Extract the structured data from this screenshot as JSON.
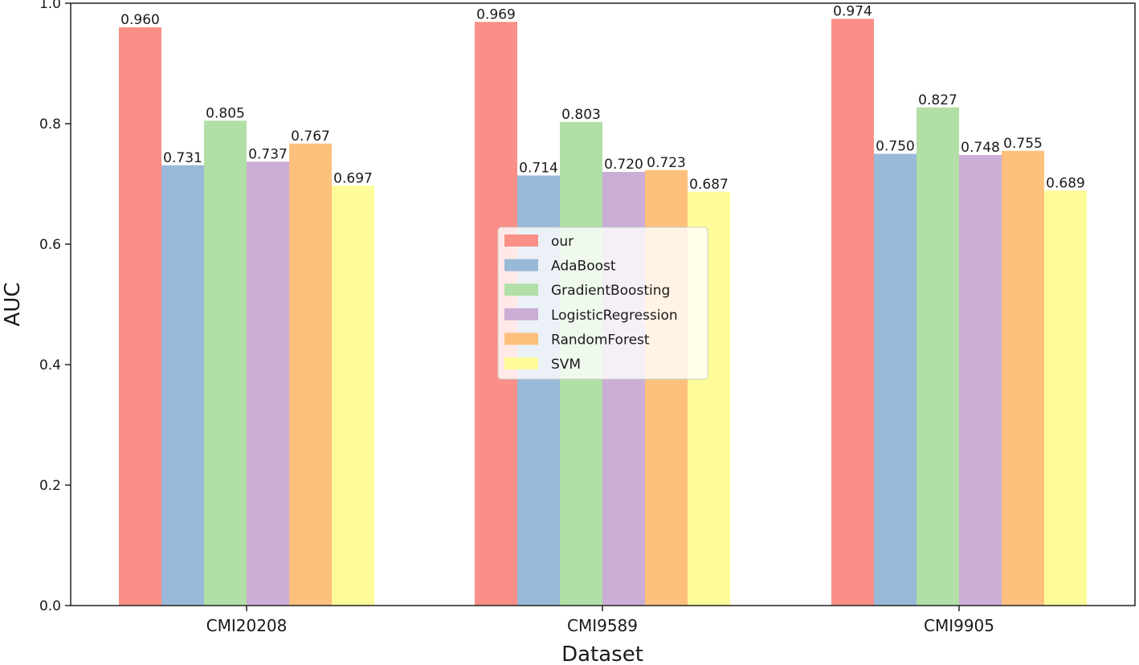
{
  "chart_data": {
    "type": "bar",
    "xlabel": "Dataset",
    "ylabel": "AUC",
    "ylim": [
      0,
      1.0
    ],
    "yticks": [
      "0.0",
      "0.2",
      "0.4",
      "0.6",
      "0.8",
      "1.0"
    ],
    "grid": false,
    "legend_position": "center",
    "categories": [
      "CMI20208",
      "CMI9589",
      "CMI9905"
    ],
    "series": [
      {
        "name": "our",
        "color": "#f98f86",
        "values": [
          0.96,
          0.969,
          0.974
        ],
        "labels": [
          "0.960",
          "0.969",
          "0.974"
        ]
      },
      {
        "name": "AdaBoost",
        "color": "#99b9d8",
        "values": [
          0.731,
          0.714,
          0.75
        ],
        "labels": [
          "0.731",
          "0.714",
          "0.750"
        ]
      },
      {
        "name": "GradientBoosting",
        "color": "#b1dfa6",
        "values": [
          0.805,
          0.803,
          0.827
        ],
        "labels": [
          "0.805",
          "0.803",
          "0.827"
        ]
      },
      {
        "name": "LogisticRegression",
        "color": "#cbaed6",
        "values": [
          0.737,
          0.72,
          0.748
        ],
        "labels": [
          "0.737",
          "0.720",
          "0.748"
        ]
      },
      {
        "name": "RandomForest",
        "color": "#fdc07d",
        "values": [
          0.767,
          0.723,
          0.755
        ],
        "labels": [
          "0.767",
          "0.723",
          "0.755"
        ]
      },
      {
        "name": "SVM",
        "color": "#fdfc98",
        "values": [
          0.697,
          0.687,
          0.689
        ],
        "labels": [
          "0.697",
          "0.687",
          "0.689"
        ]
      }
    ]
  }
}
